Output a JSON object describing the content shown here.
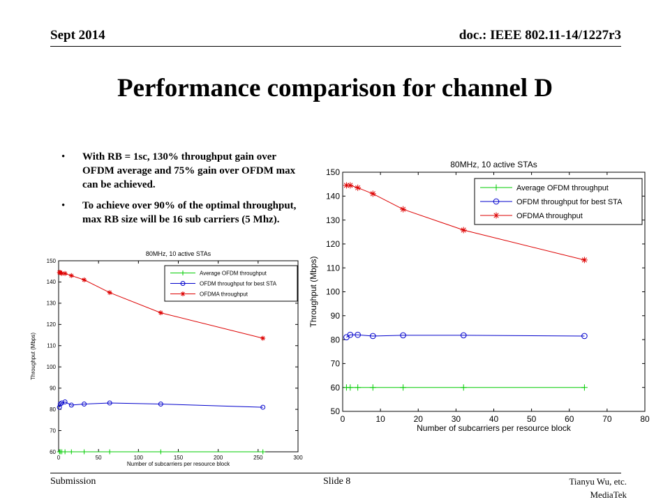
{
  "header": {
    "date": "Sept 2014",
    "doc": "doc.: IEEE 802.11-14/1227r3"
  },
  "title": "Performance comparison for channel D",
  "bullets": [
    "With RB = 1sc, 130% throughput gain over OFDM average and 75% gain over OFDM max can be achieved.",
    "To achieve over 90% of the optimal throughput, max RB size will be 16 sub carriers (5 Mhz)."
  ],
  "footer": {
    "left": "Submission",
    "center": "Slide 8",
    "author": "Tianyu Wu, etc.",
    "org": "MediaTek"
  },
  "chart_data": [
    {
      "type": "line",
      "title": "80MHz, 10 active STAs",
      "xlabel": "Number of subcarriers per resource block",
      "ylabel": "Throughput (Mbps)",
      "xlim": [
        0,
        300
      ],
      "ylim": [
        60,
        150
      ],
      "xticks": [
        0,
        50,
        100,
        150,
        200,
        250,
        300
      ],
      "yticks": [
        60,
        70,
        80,
        90,
        100,
        110,
        120,
        130,
        140,
        150
      ],
      "legend": "top-right",
      "grid": false,
      "series": [
        {
          "name": "Average OFDM throughput",
          "color": "#00cc00",
          "marker": "plus",
          "x": [
            1,
            2,
            4,
            8,
            16,
            32,
            64,
            128,
            256
          ],
          "y": [
            60,
            60,
            60,
            60,
            60,
            60,
            60,
            60,
            60
          ]
        },
        {
          "name": "OFDM throughput for best STA",
          "color": "#0000cc",
          "marker": "circle",
          "x": [
            1,
            2,
            4,
            8,
            16,
            32,
            64,
            128,
            256
          ],
          "y": [
            81,
            82.5,
            83,
            83.5,
            82,
            82.5,
            83,
            82.5,
            81
          ]
        },
        {
          "name": "OFDMA throughput",
          "color": "#dd0000",
          "marker": "star",
          "x": [
            1,
            2,
            4,
            8,
            16,
            32,
            64,
            128,
            256
          ],
          "y": [
            144.5,
            144.5,
            144,
            144,
            143,
            141,
            135,
            125.5,
            113.5
          ]
        }
      ]
    },
    {
      "type": "line",
      "title": "80MHz, 10 active STAs",
      "xlabel": "Number of subcarriers per resource block",
      "ylabel": "Throughput (Mbps)",
      "xlim": [
        0,
        80
      ],
      "ylim": [
        50,
        150
      ],
      "xticks": [
        0,
        10,
        20,
        30,
        40,
        50,
        60,
        70,
        80
      ],
      "yticks": [
        50,
        60,
        70,
        80,
        90,
        100,
        110,
        120,
        130,
        140,
        150
      ],
      "legend": "top-right",
      "grid": false,
      "series": [
        {
          "name": "Average OFDM throughput",
          "color": "#00cc00",
          "marker": "plus",
          "x": [
            1,
            2,
            4,
            8,
            16,
            32,
            64
          ],
          "y": [
            60,
            60,
            60,
            60,
            60,
            60,
            60
          ]
        },
        {
          "name": "OFDM throughput for best STA",
          "color": "#0000cc",
          "marker": "circle",
          "x": [
            1,
            2,
            4,
            8,
            16,
            32,
            64
          ],
          "y": [
            81,
            82,
            82,
            81.5,
            81.8,
            81.8,
            81.5
          ]
        },
        {
          "name": "OFDMA throughput",
          "color": "#dd0000",
          "marker": "star",
          "x": [
            1,
            2,
            4,
            8,
            16,
            32,
            64
          ],
          "y": [
            144.5,
            144.5,
            143.5,
            141,
            134.5,
            125.8,
            113.3
          ]
        }
      ]
    }
  ]
}
